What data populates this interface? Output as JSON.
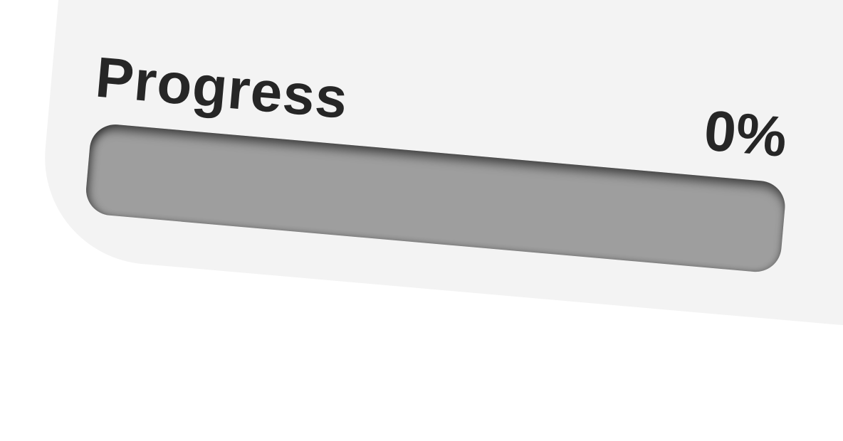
{
  "progress": {
    "label": "Progress",
    "value_text": "0%",
    "value_fraction": 0.0
  },
  "colors": {
    "card_background": "#f3f3f3",
    "track": "#9e9e9e",
    "text": "#262626",
    "page_background": "#ffffff"
  }
}
